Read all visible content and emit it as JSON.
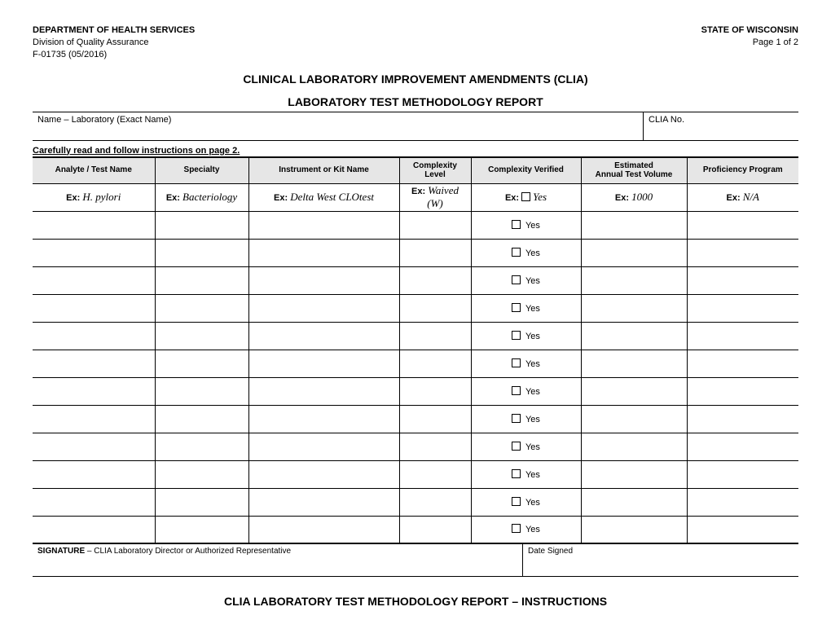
{
  "header": {
    "dept": "DEPARTMENT OF HEALTH SERVICES",
    "division": "Division of Quality Assurance",
    "form_no": "F-01735  (05/2016)",
    "state": "STATE OF WISCONSIN",
    "page": "Page 1 of 2"
  },
  "titles": {
    "main": "CLINICAL LABORATORY IMPROVEMENT AMENDMENTS (CLIA)",
    "sub": "LABORATORY TEST METHODOLOGY REPORT",
    "footer": "CLIA LABORATORY TEST METHODOLOGY REPORT – INSTRUCTIONS"
  },
  "name_clia": {
    "name_label": "Name – Laboratory (Exact Name)",
    "clia_label": "CLIA No."
  },
  "instructions_line": "Carefully read and follow instructions on page 2.",
  "table": {
    "columns": {
      "analyte": "Analyte / Test Name",
      "specialty": "Specialty",
      "instrument": "Instrument or Kit Name",
      "complexity": "Complexity Level",
      "verified": "Complexity Verified",
      "volume_line1": "Estimated",
      "volume_line2": "Annual Test Volume",
      "proficiency": "Proficiency Program"
    },
    "example_prefix": "Ex:",
    "example": {
      "analyte": "H. pylori",
      "specialty": "Bacteriology",
      "instrument": "Delta West CLOtest",
      "complexity": "Waived (W)",
      "verified": "Yes",
      "volume": "1000",
      "proficiency": "N/A"
    },
    "row_yes_label": "Yes",
    "blank_row_count": 12
  },
  "signature": {
    "sig_prefix": "SIGNATURE",
    "sig_text": " – CLIA Laboratory Director or Authorized Representative",
    "date_label": "Date Signed"
  },
  "colors": {
    "header_bg": "#e6e6e6",
    "border": "#000000",
    "text": "#000000",
    "background": "#ffffff"
  }
}
